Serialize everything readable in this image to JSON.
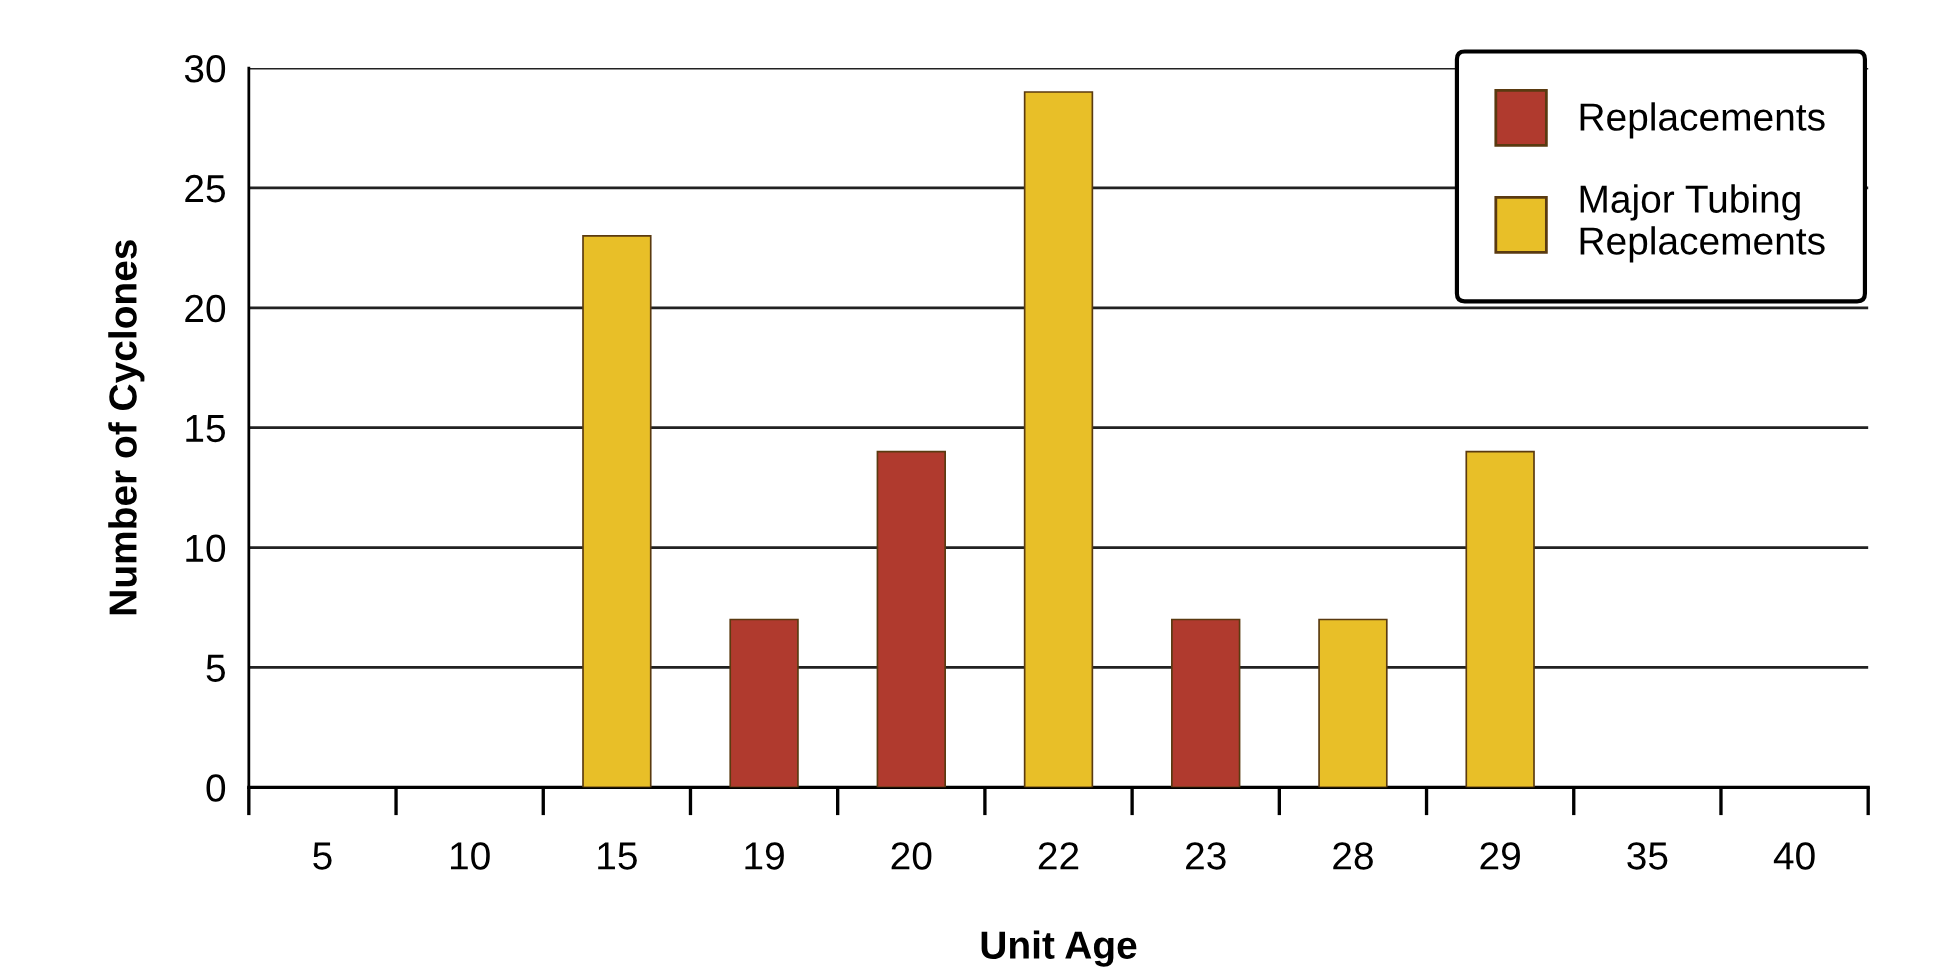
{
  "chart_data": {
    "type": "bar",
    "stacked": true,
    "xlabel": "Unit Age",
    "ylabel": "Number of Cyclones",
    "categories": [
      "5",
      "10",
      "15",
      "19",
      "20",
      "22",
      "23",
      "28",
      "29",
      "35",
      "40"
    ],
    "series": [
      {
        "name": "Replacements",
        "color": "#b03a2e",
        "values": [
          null,
          null,
          null,
          7,
          14,
          null,
          7,
          null,
          null,
          null,
          null
        ]
      },
      {
        "name": "Major Tubing\nReplacements",
        "color": "#e8bf28",
        "values": [
          null,
          null,
          23,
          null,
          null,
          29,
          null,
          7,
          14,
          null,
          null
        ]
      }
    ],
    "ylim": [
      0,
      30
    ],
    "yticks": [
      0,
      5,
      10,
      15,
      20,
      25,
      30
    ],
    "grid": "y",
    "legend": "top right"
  }
}
